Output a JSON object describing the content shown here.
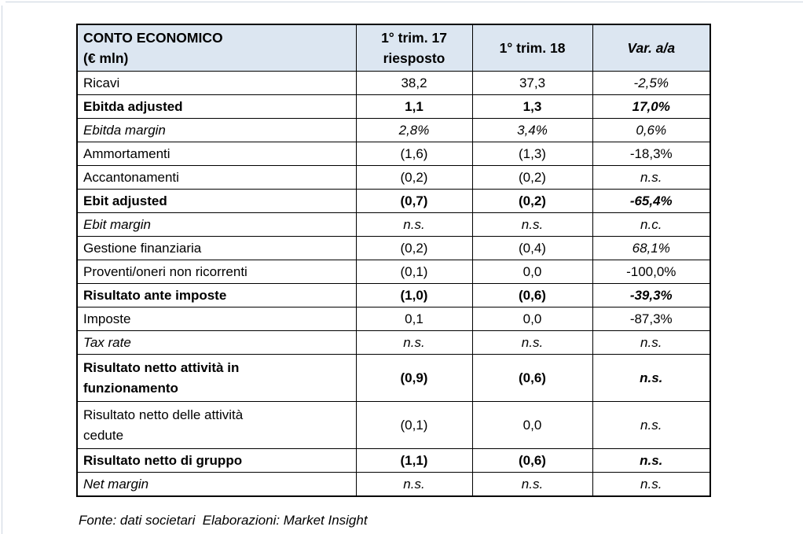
{
  "document": {
    "footnote": "Fonte: dati societari  Elaborazioni: Market Insight"
  },
  "table": {
    "title": "CONTO ECONOMICO (€ mln)",
    "header_bg": "#dce6f1",
    "border_color": "#000000",
    "header": {
      "metric": "CONTO ECONOMICO\n(€ mln)",
      "q1_17_restated": "1° trim. 17\nriesposto",
      "q1_18": "1° trim. 18",
      "var_yoy": "Var. a/a"
    },
    "rows": [
      {
        "label": "Ricavi",
        "q1_17_restated": "38,2",
        "q1_18": "37,3",
        "var_yoy": "-2,5%",
        "style": "normal",
        "var_italic": true,
        "tall": false
      },
      {
        "label": "Ebitda adjusted",
        "q1_17_restated": "1,1",
        "q1_18": "1,3",
        "var_yoy": "17,0%",
        "style": "bold",
        "var_italic": true,
        "tall": false
      },
      {
        "label": "Ebitda margin",
        "q1_17_restated": "2,8%",
        "q1_18": "3,4%",
        "var_yoy": "0,6%",
        "style": "italic",
        "var_italic": true,
        "tall": false
      },
      {
        "label": "Ammortamenti",
        "q1_17_restated": "(1,6)",
        "q1_18": "(1,3)",
        "var_yoy": "-18,3%",
        "style": "normal",
        "var_italic": false,
        "tall": false
      },
      {
        "label": "Accantonamenti",
        "q1_17_restated": "(0,2)",
        "q1_18": "(0,2)",
        "var_yoy": "n.s.",
        "style": "normal",
        "var_italic": true,
        "tall": false
      },
      {
        "label": "Ebit adjusted",
        "q1_17_restated": "(0,7)",
        "q1_18": "(0,2)",
        "var_yoy": "-65,4%",
        "style": "bold",
        "var_italic": true,
        "tall": false
      },
      {
        "label": "Ebit margin",
        "q1_17_restated": "n.s.",
        "q1_18": "n.s.",
        "var_yoy": "n.c.",
        "style": "italic",
        "var_italic": true,
        "tall": false
      },
      {
        "label": "Gestione finanziaria",
        "q1_17_restated": "(0,2)",
        "q1_18": "(0,4)",
        "var_yoy": "68,1%",
        "style": "normal",
        "var_italic": true,
        "tall": false
      },
      {
        "label": "Proventi/oneri non ricorrenti",
        "q1_17_restated": "(0,1)",
        "q1_18": "0,0",
        "var_yoy": "-100,0%",
        "style": "normal",
        "var_italic": false,
        "tall": false
      },
      {
        "label": "Risultato ante imposte",
        "q1_17_restated": "(1,0)",
        "q1_18": "(0,6)",
        "var_yoy": "-39,3%",
        "style": "bold",
        "var_italic": true,
        "tall": false
      },
      {
        "label": "Imposte",
        "q1_17_restated": "0,1",
        "q1_18": "0,0",
        "var_yoy": "-87,3%",
        "style": "normal",
        "var_italic": false,
        "tall": false
      },
      {
        "label": "Tax rate",
        "q1_17_restated": "n.s.",
        "q1_18": "n.s.",
        "var_yoy": "n.s.",
        "style": "italic",
        "var_italic": true,
        "tall": false
      },
      {
        "label": "Risultato netto attività in\nfunzionamento",
        "q1_17_restated": "(0,9)",
        "q1_18": "(0,6)",
        "var_yoy": "n.s.",
        "style": "bold",
        "var_italic": true,
        "tall": true
      },
      {
        "label": "Risultato netto delle attività\ncedute",
        "q1_17_restated": "(0,1)",
        "q1_18": "0,0",
        "var_yoy": "n.s.",
        "style": "normal",
        "var_italic": true,
        "tall": true
      },
      {
        "label": "Risultato netto di gruppo",
        "q1_17_restated": "(1,1)",
        "q1_18": "(0,6)",
        "var_yoy": "n.s.",
        "style": "bold",
        "var_italic": true,
        "tall": false
      },
      {
        "label": "Net margin",
        "q1_17_restated": "n.s.",
        "q1_18": "n.s.",
        "var_yoy": "n.s.",
        "style": "italic",
        "var_italic": true,
        "tall": false
      }
    ]
  }
}
